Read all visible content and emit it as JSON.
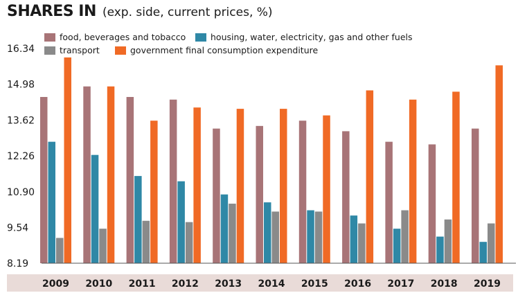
{
  "title": {
    "main": "SHARES IN",
    "sub": "(exp. side, current prices, %)"
  },
  "colors": {
    "category_band": "#e9dbd8",
    "axis": "#555555"
  },
  "chart_data": {
    "type": "bar",
    "title": "SHARES IN (exp. side, current prices, %)",
    "categories": [
      "2009",
      "2010",
      "2011",
      "2012",
      "2013",
      "2014",
      "2015",
      "2016",
      "2017",
      "2018",
      "2019"
    ],
    "yticks": [
      "16.34",
      "14.98",
      "13.62",
      "12.26",
      "10.90",
      "9.54",
      "8.19"
    ],
    "ylim": [
      8.19,
      16.34
    ],
    "grid": false,
    "legend_position": "top-left",
    "series": [
      {
        "name": "food, beverages and tobacco",
        "color": "#a87477",
        "values": [
          14.5,
          14.9,
          14.5,
          14.4,
          13.3,
          13.4,
          13.6,
          13.2,
          12.8,
          12.7,
          13.3
        ]
      },
      {
        "name": "housing, water, electricity, gas and other fuels",
        "color": "#2f88a6",
        "values": [
          12.8,
          12.3,
          11.5,
          11.3,
          10.8,
          10.5,
          10.2,
          10.0,
          9.5,
          9.2,
          9.0
        ]
      },
      {
        "name": "transport",
        "color": "#8a8a8a",
        "values": [
          9.15,
          9.5,
          9.8,
          9.75,
          10.45,
          10.15,
          10.15,
          9.7,
          10.2,
          9.85,
          9.7
        ]
      },
      {
        "name": "government final consumption expenditure",
        "color": "#f06a25",
        "values": [
          16.0,
          14.9,
          13.6,
          14.1,
          14.05,
          14.05,
          13.8,
          14.75,
          14.4,
          14.7,
          15.7
        ]
      }
    ]
  }
}
